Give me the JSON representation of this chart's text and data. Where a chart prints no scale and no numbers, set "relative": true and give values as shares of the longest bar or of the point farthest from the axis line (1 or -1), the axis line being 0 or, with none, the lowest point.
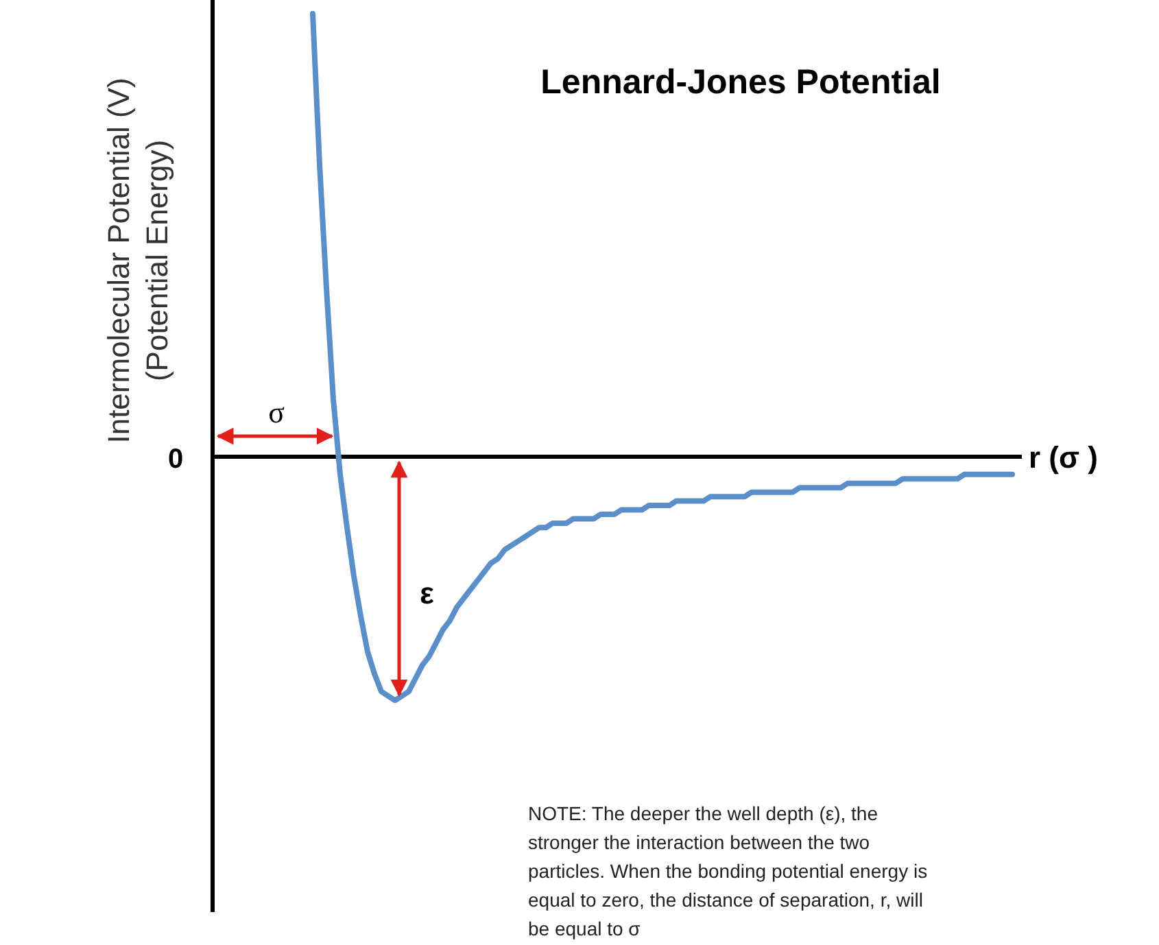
{
  "chart_data": {
    "type": "line",
    "title": "Lennard-Jones Potential",
    "xlabel": "r (σ )",
    "ylabel": "Intermolecular Potential (V)\n(Potential Energy)",
    "relative": true,
    "marker": "none",
    "line_style": "solid",
    "annotations": [
      "0",
      "σ",
      "ε",
      "NOTE: The deeper the well depth (ε), the stronger the interaction between the two particles.  When the bonding potential energy is equal to zero, the distance of separation, r, will be equal to σ"
    ],
    "categories": [
      null,
      null,
      null,
      null,
      null,
      null,
      null,
      null,
      null,
      null,
      null,
      null,
      null,
      null,
      null,
      null,
      null,
      null,
      null,
      null,
      null,
      null,
      null,
      null,
      null,
      null,
      null,
      null,
      null,
      null,
      null,
      null,
      null,
      null,
      null,
      null,
      null,
      null,
      null,
      null,
      null,
      null,
      null,
      null,
      null,
      null,
      null,
      null,
      null,
      null,
      null,
      null,
      null,
      null,
      null,
      null,
      null,
      null,
      null,
      null,
      null,
      null,
      null,
      null,
      null,
      null,
      null,
      null,
      null,
      null,
      null,
      null,
      null,
      null,
      null,
      null,
      null,
      null,
      null,
      null,
      null,
      null,
      null,
      null,
      null,
      null,
      null,
      null,
      null,
      null,
      null,
      null,
      null,
      null,
      null,
      null,
      null,
      null,
      null,
      null,
      null,
      null,
      null
    ],
    "series": [
      {
        "color": "#5b8fc9",
        "values": [
          1.0,
          0.66,
          0.38,
          0.13,
          -0.04,
          -0.16,
          -0.27,
          -0.36,
          -0.44,
          -0.49,
          -0.53,
          -0.54,
          -0.55,
          -0.54,
          -0.53,
          -0.5,
          -0.47,
          -0.45,
          -0.42,
          -0.39,
          -0.37,
          -0.34,
          -0.32,
          -0.3,
          -0.28,
          -0.26,
          -0.24,
          -0.23,
          -0.21,
          -0.2,
          -0.19,
          -0.18,
          -0.17,
          -0.16,
          -0.16,
          -0.15,
          -0.15,
          -0.15,
          -0.14,
          -0.14,
          -0.14,
          -0.14,
          -0.13,
          -0.13,
          -0.13,
          -0.12,
          -0.12,
          -0.12,
          -0.12,
          -0.11,
          -0.11,
          -0.11,
          -0.11,
          -0.1,
          -0.1,
          -0.1,
          -0.1,
          -0.1,
          -0.09,
          -0.09,
          -0.09,
          -0.09,
          -0.09,
          -0.09,
          -0.08,
          -0.08,
          -0.08,
          -0.08,
          -0.08,
          -0.08,
          -0.08,
          -0.07,
          -0.07,
          -0.07,
          -0.07,
          -0.07,
          -0.07,
          -0.07,
          -0.06,
          -0.06,
          -0.06,
          -0.06,
          -0.06,
          -0.06,
          -0.06,
          -0.06,
          -0.05,
          -0.05,
          -0.05,
          -0.05,
          -0.05,
          -0.05,
          -0.05,
          -0.05,
          -0.05,
          -0.04,
          -0.04,
          -0.04,
          -0.04,
          -0.04,
          -0.04,
          -0.04,
          -0.04
        ]
      }
    ]
  }
}
